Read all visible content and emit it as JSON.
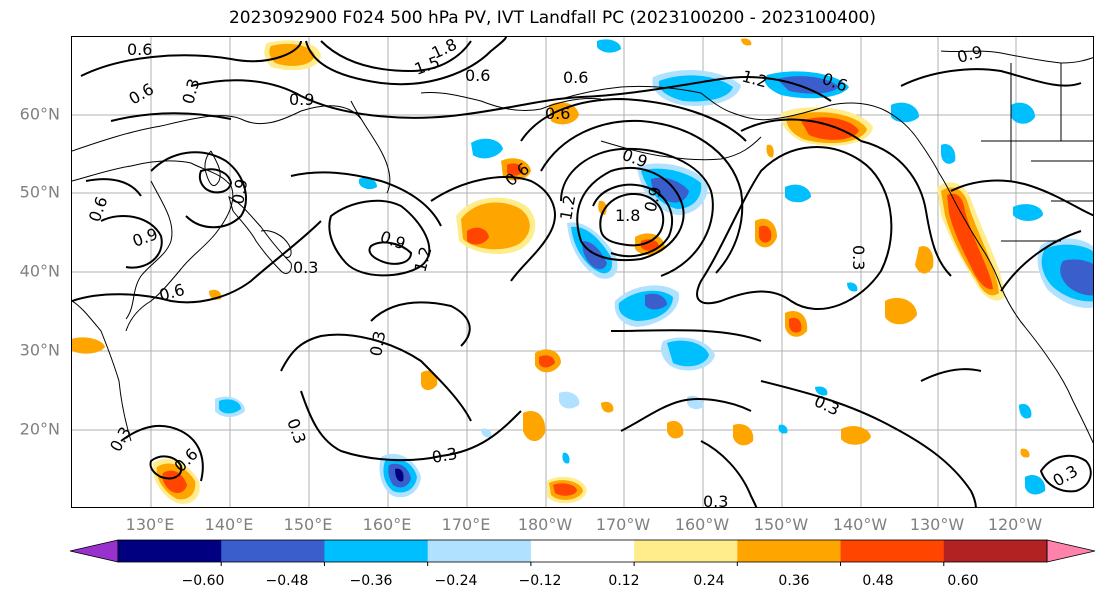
{
  "title": "2023092900 F024 500 hPa PV, IVT Landfall PC (2023100200 - 2023100400)",
  "lat_labels": [
    "60°N",
    "50°N",
    "40°N",
    "30°N",
    "20°N"
  ],
  "lon_labels": [
    "130°E",
    "140°E",
    "150°E",
    "160°E",
    "170°E",
    "180°W",
    "170°W",
    "160°W",
    "150°W",
    "140°W",
    "130°W",
    "120°W"
  ],
  "contour_labels": [
    "0.6",
    "1.8",
    "1.5",
    "0.9",
    "0.6",
    "0.3",
    "0.6",
    "0.6",
    "1.2",
    "0.6",
    "0.9",
    "0.6",
    "0.9",
    "1.2",
    "0.9",
    "1.8",
    "0.9",
    "0.3",
    "0.6",
    "0.9",
    "0.6",
    "0.9",
    "1.2",
    "0.3",
    "0.6",
    "0.3",
    "0.3",
    "0.3",
    "0.6",
    "0.3",
    "0.3",
    "0.3",
    "0.3"
  ],
  "colorbar": {
    "ticks": [
      "−0.60",
      "−0.48",
      "−0.36",
      "−0.24",
      "−0.12",
      "0.12",
      "0.24",
      "0.36",
      "0.48",
      "0.60"
    ],
    "colors": {
      "lt_-0.60": "#9932cc",
      "-0.60_-0.48": "#000080",
      "-0.48_-0.36": "#3a5fcd",
      "-0.36_-0.24": "#00bfff",
      "-0.24_-0.12": "#b0e2ff",
      "-0.12_0.12": "#ffffff",
      "0.12_0.24": "#ffec8b",
      "0.24_0.36": "#ffa500",
      "0.36_0.48": "#ff4500",
      "0.48_0.60": "#b22222",
      "gt_0.60": "#ff82ab"
    }
  }
}
